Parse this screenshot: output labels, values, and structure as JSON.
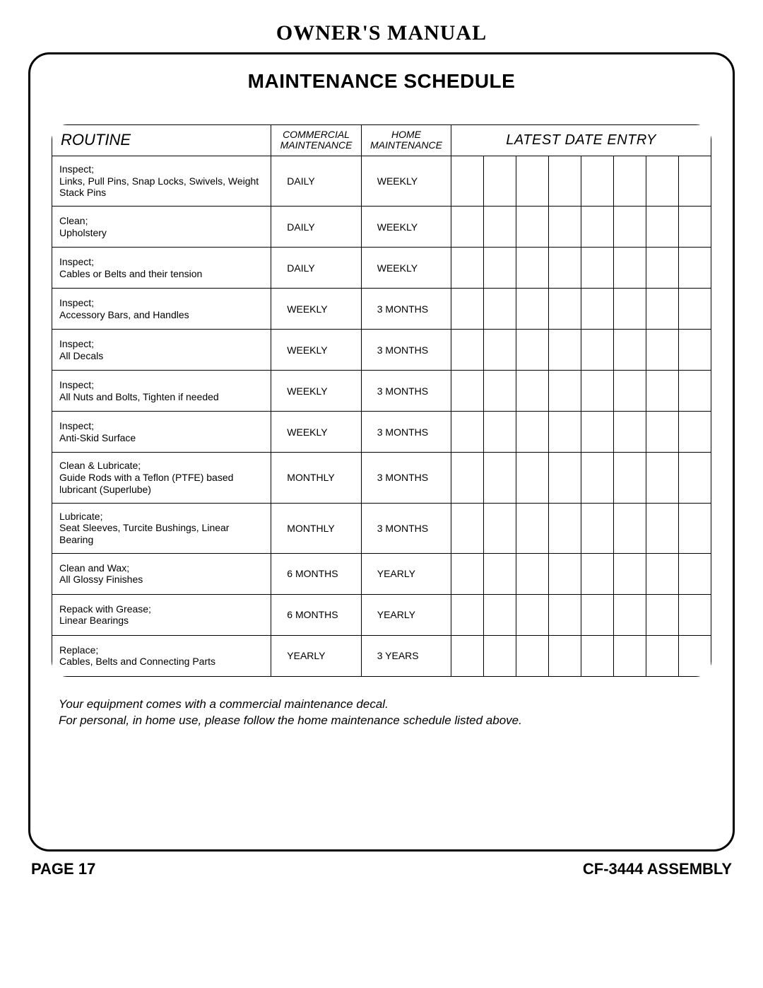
{
  "doc_title": "OWNER'S MANUAL",
  "schedule_title": "MAINTENANCE SCHEDULE",
  "headers": {
    "routine": "ROUTINE",
    "commercial_line1": "COMMERCIAL",
    "commercial_line2": "MAINTENANCE",
    "home_line1": "HOME",
    "home_line2": "MAINTENANCE",
    "latest": "LATEST DATE ENTRY"
  },
  "entry_columns": 8,
  "rows": [
    {
      "action": "Inspect;",
      "detail": "Links, Pull Pins, Snap Locks, Swivels, Weight Stack Pins",
      "commercial": "DAILY",
      "home": "WEEKLY"
    },
    {
      "action": "Clean;",
      "detail": "Upholstery",
      "commercial": "DAILY",
      "home": "WEEKLY"
    },
    {
      "action": "Inspect;",
      "detail": "Cables or Belts and their tension",
      "commercial": "DAILY",
      "home": "WEEKLY"
    },
    {
      "action": "Inspect;",
      "detail": "Accessory Bars, and Handles",
      "commercial": "WEEKLY",
      "home": "3 MONTHS"
    },
    {
      "action": "Inspect;",
      "detail": "All Decals",
      "commercial": "WEEKLY",
      "home": "3 MONTHS"
    },
    {
      "action": "Inspect;",
      "detail": "All Nuts and Bolts, Tighten if needed",
      "commercial": "WEEKLY",
      "home": "3 MONTHS"
    },
    {
      "action": "Inspect;",
      "detail": "Anti-Skid Surface",
      "commercial": "WEEKLY",
      "home": "3 MONTHS"
    },
    {
      "action": "Clean & Lubricate;",
      "detail": "Guide Rods with a Teflon (PTFE) based lubricant (Superlube)",
      "commercial": "MONTHLY",
      "home": "3 MONTHS"
    },
    {
      "action": "Lubricate;",
      "detail": "Seat Sleeves, Turcite Bushings, Linear Bearing",
      "commercial": "MONTHLY",
      "home": "3 MONTHS"
    },
    {
      "action": "Clean and Wax;",
      "detail": "All Glossy Finishes",
      "commercial": "6 MONTHS",
      "home": "YEARLY"
    },
    {
      "action": "Repack with Grease;",
      "detail": "Linear Bearings",
      "commercial": "6 MONTHS",
      "home": "YEARLY"
    },
    {
      "action": "Replace;",
      "detail": "Cables, Belts and Connecting Parts",
      "commercial": "YEARLY",
      "home": "3 YEARS"
    }
  ],
  "note_line1": "Your equipment comes with a commercial maintenance decal.",
  "note_line2": "For personal, in home use, please follow the home maintenance schedule listed above.",
  "footer_left": "PAGE 17",
  "footer_right": "CF-3444 ASSEMBLY"
}
